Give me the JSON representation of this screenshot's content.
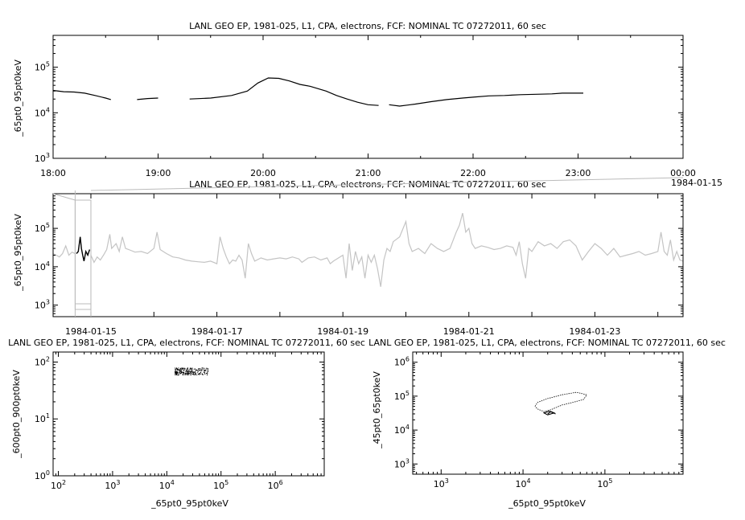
{
  "chart_data": [
    {
      "id": "top",
      "type": "line",
      "title": "LANL GEO EP, 1981-025, L1, CPA, electrons, FCF: NOMINAL TC 07272011, 60 sec",
      "ylabel": "_65pt0_95pt0keV",
      "yscale": "log",
      "ylim": [
        1000,
        500000
      ],
      "y_ticks": [
        {
          "base": "10",
          "exp": "3",
          "v": 1000
        },
        {
          "base": "10",
          "exp": "4",
          "v": 10000
        },
        {
          "base": "10",
          "exp": "5",
          "v": 100000
        }
      ],
      "x_unit": "hours",
      "xlim": [
        18,
        24
      ],
      "x_ticks": [
        {
          "v": 18,
          "label": "18:00"
        },
        {
          "v": 19,
          "label": "19:00"
        },
        {
          "v": 20,
          "label": "20:00"
        },
        {
          "v": 21,
          "label": "21:00"
        },
        {
          "v": 22,
          "label": "22:00"
        },
        {
          "v": 23,
          "label": "23:00"
        },
        {
          "v": 24,
          "label": "00:00"
        }
      ],
      "x_date_label": "1984-01-15",
      "segments": [
        [
          [
            18.0,
            31000
          ],
          [
            18.1,
            29000
          ],
          [
            18.2,
            28500
          ],
          [
            18.3,
            27000
          ],
          [
            18.4,
            24000
          ],
          [
            18.5,
            21000
          ],
          [
            18.55,
            19500
          ]
        ],
        [
          [
            18.8,
            19500
          ],
          [
            18.9,
            20500
          ],
          [
            19.0,
            21000
          ]
        ],
        [
          [
            19.3,
            20000
          ],
          [
            19.5,
            21000
          ],
          [
            19.7,
            24000
          ],
          [
            19.85,
            30000
          ],
          [
            19.95,
            45000
          ],
          [
            20.05,
            58000
          ],
          [
            20.15,
            57000
          ],
          [
            20.25,
            50000
          ],
          [
            20.35,
            42000
          ],
          [
            20.45,
            38000
          ],
          [
            20.6,
            30000
          ],
          [
            20.7,
            24000
          ],
          [
            20.8,
            20000
          ],
          [
            20.9,
            17000
          ],
          [
            21.0,
            15000
          ],
          [
            21.1,
            14500
          ]
        ],
        [
          [
            21.2,
            15000
          ],
          [
            21.3,
            14000
          ],
          [
            21.45,
            15500
          ],
          [
            21.6,
            17500
          ],
          [
            21.75,
            19500
          ],
          [
            21.9,
            21000
          ],
          [
            22.0,
            22000
          ],
          [
            22.15,
            23500
          ],
          [
            22.3,
            24000
          ],
          [
            22.45,
            25000
          ],
          [
            22.6,
            25500
          ],
          [
            22.75,
            26000
          ],
          [
            22.85,
            27000
          ],
          [
            23.05,
            27000
          ]
        ]
      ]
    },
    {
      "id": "middle",
      "type": "line",
      "title": "LANL GEO EP, 1981-025, L1, CPA, electrons, FCF: NOMINAL TC 07272011, 60 sec",
      "ylabel": "_65pt0_95pt0keV",
      "yscale": "log",
      "ylim": [
        500,
        800000
      ],
      "y_ticks": [
        {
          "base": "10",
          "exp": "3",
          "v": 1000
        },
        {
          "base": "10",
          "exp": "4",
          "v": 10000
        },
        {
          "base": "10",
          "exp": "5",
          "v": 100000
        }
      ],
      "x_unit": "days",
      "xlim": [
        -0.6,
        9.4
      ],
      "x_ticks": [
        {
          "v": 0,
          "label": "1984-01-15"
        },
        {
          "v": 2,
          "label": "1984-01-17"
        },
        {
          "v": 4,
          "label": "1984-01-19"
        },
        {
          "v": 6,
          "label": "1984-01-21"
        },
        {
          "v": 8,
          "label": "1984-01-23"
        }
      ],
      "highlight_window": [
        -0.25,
        0.0
      ],
      "highlight_series": [
        [
          -0.23,
          22000
        ],
        [
          -0.2,
          25000
        ],
        [
          -0.17,
          60000
        ],
        [
          -0.15,
          30000
        ],
        [
          -0.13,
          20000
        ],
        [
          -0.11,
          14000
        ],
        [
          -0.08,
          25000
        ],
        [
          -0.05,
          20000
        ],
        [
          -0.02,
          28000
        ]
      ],
      "background_series": [
        [
          -0.6,
          22000
        ],
        [
          -0.55,
          20000
        ],
        [
          -0.5,
          18000
        ],
        [
          -0.45,
          22000
        ],
        [
          -0.4,
          35000
        ],
        [
          -0.35,
          20000
        ],
        [
          -0.3,
          24000
        ],
        [
          -0.25,
          22000
        ],
        [
          0.0,
          20000
        ],
        [
          0.05,
          13000
        ],
        [
          0.1,
          18000
        ],
        [
          0.15,
          15000
        ],
        [
          0.2,
          20000
        ],
        [
          0.25,
          28000
        ],
        [
          0.3,
          70000
        ],
        [
          0.33,
          30000
        ],
        [
          0.4,
          40000
        ],
        [
          0.45,
          25000
        ],
        [
          0.5,
          60000
        ],
        [
          0.55,
          30000
        ],
        [
          0.6,
          28000
        ],
        [
          0.7,
          24000
        ],
        [
          0.8,
          25000
        ],
        [
          0.9,
          22000
        ],
        [
          1.0,
          30000
        ],
        [
          1.05,
          80000
        ],
        [
          1.1,
          28000
        ],
        [
          1.2,
          22000
        ],
        [
          1.3,
          18000
        ],
        [
          1.4,
          17000
        ],
        [
          1.5,
          15000
        ],
        [
          1.6,
          14000
        ],
        [
          1.7,
          13500
        ],
        [
          1.8,
          13000
        ],
        [
          1.9,
          14000
        ],
        [
          2.0,
          12000
        ],
        [
          2.05,
          60000
        ],
        [
          2.1,
          30000
        ],
        [
          2.15,
          18000
        ],
        [
          2.2,
          12000
        ],
        [
          2.25,
          15000
        ],
        [
          2.3,
          14000
        ],
        [
          2.35,
          20000
        ],
        [
          2.4,
          15000
        ],
        [
          2.45,
          5000
        ],
        [
          2.5,
          40000
        ],
        [
          2.55,
          22000
        ],
        [
          2.6,
          14000
        ],
        [
          2.7,
          17000
        ],
        [
          2.8,
          15000
        ],
        [
          2.9,
          16000
        ],
        [
          3.0,
          17000
        ],
        [
          3.1,
          16000
        ],
        [
          3.2,
          18000
        ],
        [
          3.3,
          16000
        ],
        [
          3.35,
          13000
        ],
        [
          3.45,
          17000
        ],
        [
          3.55,
          18000
        ],
        [
          3.65,
          15000
        ],
        [
          3.75,
          17000
        ],
        [
          3.8,
          12000
        ],
        [
          3.85,
          14000
        ],
        [
          4.0,
          20000
        ],
        [
          4.05,
          5000
        ],
        [
          4.1,
          40000
        ],
        [
          4.15,
          8000
        ],
        [
          4.2,
          25000
        ],
        [
          4.25,
          12000
        ],
        [
          4.3,
          18000
        ],
        [
          4.35,
          5000
        ],
        [
          4.4,
          20000
        ],
        [
          4.45,
          13000
        ],
        [
          4.5,
          20000
        ],
        [
          4.55,
          9000
        ],
        [
          4.6,
          3000
        ],
        [
          4.65,
          15000
        ],
        [
          4.7,
          30000
        ],
        [
          4.75,
          25000
        ],
        [
          4.8,
          45000
        ],
        [
          4.9,
          60000
        ],
        [
          5.0,
          150000
        ],
        [
          5.05,
          40000
        ],
        [
          5.1,
          25000
        ],
        [
          5.2,
          30000
        ],
        [
          5.3,
          22000
        ],
        [
          5.4,
          40000
        ],
        [
          5.5,
          30000
        ],
        [
          5.6,
          25000
        ],
        [
          5.7,
          30000
        ],
        [
          5.8,
          80000
        ],
        [
          5.85,
          120000
        ],
        [
          5.9,
          250000
        ],
        [
          5.95,
          80000
        ],
        [
          6.0,
          100000
        ],
        [
          6.05,
          40000
        ],
        [
          6.1,
          30000
        ],
        [
          6.2,
          35000
        ],
        [
          6.3,
          32000
        ],
        [
          6.4,
          28000
        ],
        [
          6.5,
          30000
        ],
        [
          6.6,
          35000
        ],
        [
          6.7,
          32000
        ],
        [
          6.75,
          20000
        ],
        [
          6.8,
          45000
        ],
        [
          6.85,
          12000
        ],
        [
          6.9,
          5000
        ],
        [
          6.95,
          30000
        ],
        [
          7.0,
          25000
        ],
        [
          7.1,
          45000
        ],
        [
          7.2,
          35000
        ],
        [
          7.3,
          40000
        ],
        [
          7.4,
          30000
        ],
        [
          7.5,
          45000
        ],
        [
          7.6,
          50000
        ],
        [
          7.7,
          35000
        ],
        [
          7.8,
          15000
        ],
        [
          7.9,
          25000
        ],
        [
          8.0,
          40000
        ],
        [
          8.1,
          30000
        ],
        [
          8.2,
          20000
        ],
        [
          8.3,
          30000
        ],
        [
          8.4,
          18000
        ],
        [
          8.5,
          20000
        ],
        [
          8.6,
          22000
        ],
        [
          8.7,
          25000
        ],
        [
          8.8,
          20000
        ],
        [
          8.9,
          22000
        ],
        [
          9.0,
          25000
        ],
        [
          9.05,
          80000
        ],
        [
          9.1,
          25000
        ],
        [
          9.15,
          20000
        ],
        [
          9.2,
          50000
        ],
        [
          9.25,
          15000
        ],
        [
          9.3,
          25000
        ],
        [
          9.35,
          15000
        ],
        [
          9.4,
          14000
        ]
      ]
    },
    {
      "id": "bottom-left",
      "type": "scatter",
      "title": "LANL GEO EP, 1981-025, L1, CPA, electrons, FCF: NOMINAL TC 07272011, 60 sec",
      "xlabel": "_65pt0_95pt0keV",
      "ylabel": "_600pt0_900pt0keV",
      "xscale": "log",
      "yscale": "log",
      "xlim": [
        80,
        8000000
      ],
      "ylim": [
        1,
        150
      ],
      "x_ticks": [
        {
          "base": "10",
          "exp": "2",
          "v": 100
        },
        {
          "base": "10",
          "exp": "3",
          "v": 1000
        },
        {
          "base": "10",
          "exp": "4",
          "v": 10000
        },
        {
          "base": "10",
          "exp": "5",
          "v": 100000
        },
        {
          "base": "10",
          "exp": "6",
          "v": 1000000
        }
      ],
      "y_ticks": [
        {
          "base": "10",
          "exp": "0",
          "v": 1
        },
        {
          "base": "10",
          "exp": "1",
          "v": 10
        },
        {
          "base": "10",
          "exp": "2",
          "v": 100
        }
      ],
      "cluster": {
        "x_range": [
          14000,
          60000
        ],
        "y_range": [
          60,
          80
        ]
      }
    },
    {
      "id": "bottom-right",
      "type": "scatter",
      "title": "LANL GEO EP, 1981-025, L1, CPA, electrons, FCF: NOMINAL TC 07272011, 60 sec",
      "xlabel": "_65pt0_95pt0keV",
      "ylabel": "_45pt0_65pt0keV",
      "xscale": "log",
      "yscale": "log",
      "xlim": [
        450,
        900000
      ],
      "ylim": [
        500,
        2000000
      ],
      "x_ticks": [
        {
          "base": "10",
          "exp": "3",
          "v": 1000
        },
        {
          "base": "10",
          "exp": "4",
          "v": 10000
        },
        {
          "base": "10",
          "exp": "5",
          "v": 100000
        }
      ],
      "y_ticks": [
        {
          "base": "10",
          "exp": "3",
          "v": 1000
        },
        {
          "base": "10",
          "exp": "4",
          "v": 10000
        },
        {
          "base": "10",
          "exp": "5",
          "v": 100000
        },
        {
          "base": "10",
          "exp": "6",
          "v": 1000000
        }
      ],
      "loop": [
        [
          14000,
          50000
        ],
        [
          15000,
          65000
        ],
        [
          20000,
          85000
        ],
        [
          30000,
          110000
        ],
        [
          45000,
          130000
        ],
        [
          60000,
          110000
        ],
        [
          55000,
          80000
        ],
        [
          40000,
          65000
        ],
        [
          30000,
          55000
        ],
        [
          22000,
          40000
        ],
        [
          18000,
          35000
        ],
        [
          15000,
          42000
        ],
        [
          14000,
          50000
        ]
      ],
      "knot": [
        [
          20000,
          30000
        ],
        [
          22000,
          35000
        ],
        [
          24000,
          32000
        ],
        [
          20000,
          28000
        ],
        [
          18000,
          32000
        ],
        [
          21000,
          36000
        ],
        [
          25000,
          30000
        ]
      ]
    }
  ]
}
